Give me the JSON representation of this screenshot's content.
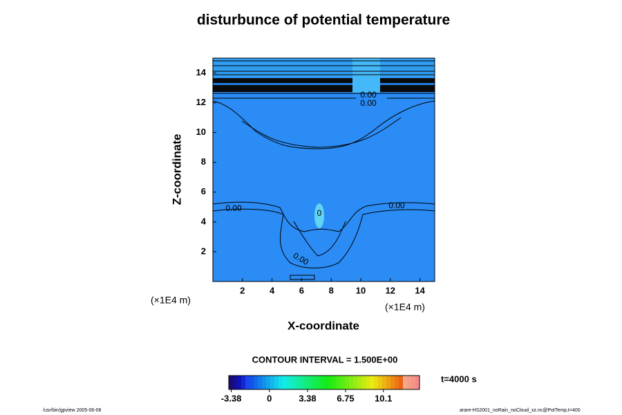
{
  "chart_data": {
    "type": "contour",
    "title": "disturbunce of potential temperature",
    "xlabel": "X-coordinate",
    "ylabel": "Z-coordinate",
    "x_unit": "(×1E4 m)",
    "y_unit": "(×1E4 m)",
    "xlim": [
      0,
      15
    ],
    "xticks": [
      2,
      4,
      6,
      8,
      10,
      12,
      14
    ],
    "ylim": [
      0,
      15
    ],
    "yticks": [
      2,
      4,
      6,
      8,
      10,
      12,
      14
    ],
    "contour_labels": [
      "0.00",
      "0.00",
      "0.00",
      "0.00",
      "0.00",
      "0"
    ],
    "interval_text": "CONTOUR INTERVAL = 1.500E+00",
    "time_text": "t=4000 s",
    "clim": [
      -3.6,
      13.3
    ],
    "cticks": [
      -3.38,
      0,
      3.38,
      6.75,
      10.1
    ],
    "footer_left": "/usr/bin/gpview 2005-06-08",
    "footer_right": "arare-HS2001_noRain_noCloud_xz.nc@PotTemp,t=400"
  }
}
